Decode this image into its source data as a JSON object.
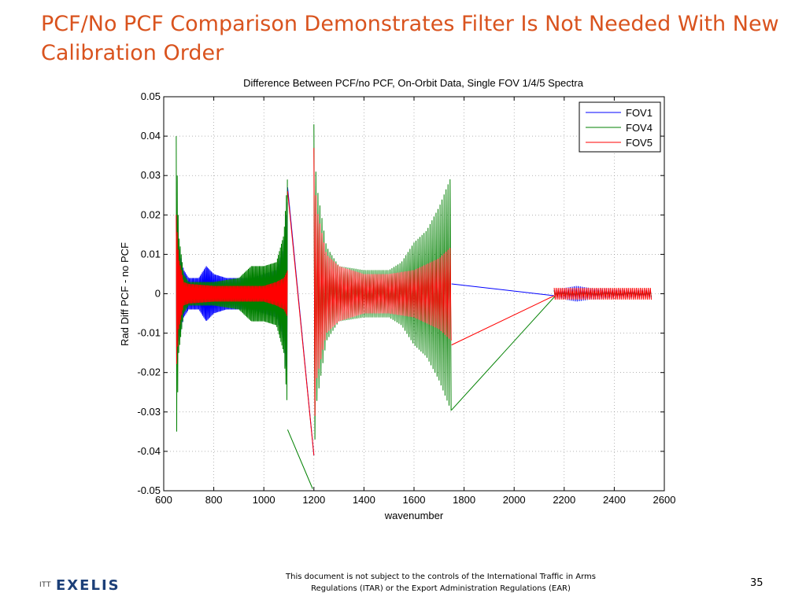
{
  "slide": {
    "title": "PCF/No PCF Comparison Demonstrates Filter Is Not Needed With New Calibration Order",
    "footer_note": "This document is not subject to the controls of the International Traffic in Arms Regulations (ITAR) or the Export Administration Regulations (EAR)",
    "page_number": "35",
    "logo_prefix": "ITT",
    "logo_brand": "EXELIS"
  },
  "chart_data": {
    "type": "line",
    "title": "Difference Between PCF/no PCF, On-Orbit Data, Single FOV 1/4/5 Spectra",
    "xlabel": "wavenumber",
    "ylabel": "Rad Diff PCF - no PCF",
    "xlim": [
      600,
      2600
    ],
    "ylim": [
      -0.05,
      0.05
    ],
    "xticks": [
      600,
      800,
      1000,
      1200,
      1400,
      1600,
      1800,
      2000,
      2200,
      2400,
      2600
    ],
    "yticks": [
      -0.05,
      -0.04,
      -0.03,
      -0.02,
      -0.01,
      0,
      0.01,
      0.02,
      0.03,
      0.04,
      0.05
    ],
    "xtick_labels": [
      "600",
      "800",
      "1000",
      "1200",
      "1400",
      "1600",
      "1800",
      "2000",
      "2200",
      "2400",
      "2600"
    ],
    "ytick_labels": [
      "-0.05",
      "-0.04",
      "-0.03",
      "-0.02",
      "-0.01",
      "0",
      "0.01",
      "0.02",
      "0.03",
      "0.04",
      "0.05"
    ],
    "grid": true,
    "legend_position": "top-right",
    "series": [
      {
        "name": "FOV1",
        "color": "#0000ff",
        "bands": [
          {
            "x": [
              650,
              1095
            ],
            "envelope_x": [
              650,
              660,
              680,
              700,
              740,
              770,
              800,
              850,
              900,
              950,
              1000,
              1050,
              1080,
              1095
            ],
            "envelope_y": [
              0.02,
              0.012,
              0.006,
              0.004,
              0.004,
              0.007,
              0.005,
              0.004,
              0.004,
              0.004,
              0.005,
              0.006,
              0.012,
              0.024
            ],
            "step": 2
          },
          {
            "x": [
              2160,
              2550
            ],
            "envelope_x": [
              2160,
              2250,
              2300,
              2400,
              2550
            ],
            "envelope_y": [
              0.001,
              0.002,
              0.0015,
              0.0012,
              0.001
            ],
            "step": 4
          }
        ],
        "lines": [
          {
            "x": [
              1095,
              1200
            ],
            "y": [
              0.027,
              -0.041
            ]
          },
          {
            "x": [
              1750,
              2160
            ],
            "y": [
              0.0025,
              -0.0005
            ]
          }
        ]
      },
      {
        "name": "FOV4",
        "color": "#008000",
        "bands": [
          {
            "x": [
              650,
              1095
            ],
            "envelope_x": [
              650,
              660,
              680,
              700,
              740,
              770,
              800,
              850,
              900,
              950,
              1000,
              1050,
              1080,
              1095
            ],
            "envelope_y": [
              0.04,
              0.015,
              0.005,
              0.003,
              0.003,
              0.003,
              0.003,
              0.0035,
              0.004,
              0.007,
              0.007,
              0.008,
              0.015,
              0.03
            ],
            "step": 2
          },
          {
            "x": [
              1200,
              1750
            ],
            "envelope_x": [
              1200,
              1210,
              1250,
              1300,
              1400,
              1500,
              1550,
              1600,
              1650,
              1700,
              1750
            ],
            "envelope_y": [
              0.043,
              0.028,
              0.012,
              0.007,
              0.006,
              0.006,
              0.008,
              0.013,
              0.016,
              0.022,
              0.03
            ],
            "step": 4
          },
          {
            "x": [
              2160,
              2550
            ],
            "envelope_x": [
              2160,
              2550
            ],
            "envelope_y": [
              0.0008,
              0.0008
            ],
            "step": 4
          }
        ],
        "lines": [
          {
            "x": [
              1095,
              1195
            ],
            "y": [
              -0.0345,
              -0.0495
            ]
          },
          {
            "x": [
              1750,
              2165
            ],
            "y": [
              -0.0295,
              -0.0005
            ]
          }
        ]
      },
      {
        "name": "FOV5",
        "color": "#ff0000",
        "bands": [
          {
            "x": [
              650,
              1095
            ],
            "envelope_x": [
              650,
              660,
              680,
              700,
              800,
              900,
              1000,
              1050,
              1080,
              1095
            ],
            "envelope_y": [
              0.02,
              0.009,
              0.003,
              0.0025,
              0.002,
              0.002,
              0.002,
              0.003,
              0.004,
              0.006
            ],
            "step": 2
          },
          {
            "x": [
              1200,
              1750
            ],
            "envelope_x": [
              1200,
              1210,
              1250,
              1300,
              1400,
              1500,
              1600,
              1700,
              1750
            ],
            "envelope_y": [
              0.037,
              0.022,
              0.01,
              0.007,
              0.005,
              0.005,
              0.006,
              0.009,
              0.012
            ],
            "step": 4
          },
          {
            "x": [
              2160,
              2550
            ],
            "envelope_x": [
              2160,
              2550
            ],
            "envelope_y": [
              0.0015,
              0.0015
            ],
            "step": 4
          }
        ],
        "lines": [
          {
            "x": [
              1095,
              1200
            ],
            "y": [
              0.026,
              -0.041
            ]
          },
          {
            "x": [
              1750,
              2160
            ],
            "y": [
              -0.013,
              -0.0005
            ]
          }
        ]
      }
    ]
  }
}
